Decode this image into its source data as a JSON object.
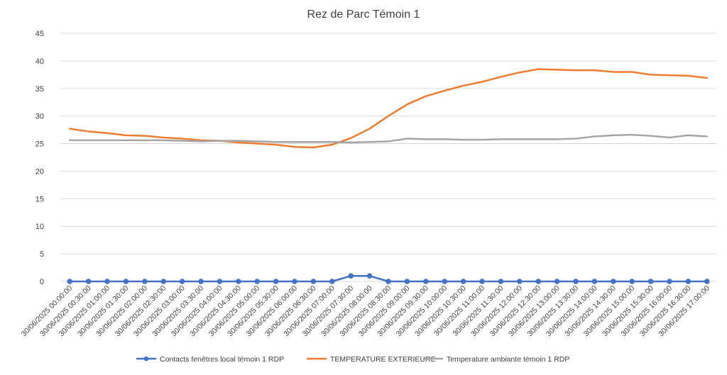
{
  "chart_data": {
    "type": "line",
    "title": "Rez de Parc Témoin 1",
    "xlabel": "",
    "ylabel": "",
    "ylim": [
      0,
      45
    ],
    "yticks": [
      0,
      5,
      10,
      15,
      20,
      25,
      30,
      35,
      40,
      45
    ],
    "grid": true,
    "legend_position": "bottom",
    "categories": [
      "30/06/2025 00:00:00",
      "30/06/2025 00:30:00",
      "30/06/2025 01:00:00",
      "30/06/2025 01:30:00",
      "30/06/2025 02:00:00",
      "30/06/2025 02:30:00",
      "30/06/2025 03:00:00",
      "30/06/2025 03:30:00",
      "30/06/2025 04:00:00",
      "30/06/2025 04:30:00",
      "30/06/2025 05:00:00",
      "30/06/2025 05:30:00",
      "30/06/2025 06:00:00",
      "30/06/2025 06:30:00",
      "30/06/2025 07:00:00",
      "30/06/2025 07:30:00",
      "30/06/2025 08:00:00",
      "30/06/2025 08:30:00",
      "30/06/2025 09:00:00",
      "30/06/2025 09:30:00",
      "30/06/2025 10:00:00",
      "30/06/2025 10:30:00",
      "30/06/2025 11:00:00",
      "30/06/2025 11:30:00",
      "30/06/2025 12:00:00",
      "30/06/2025 12:30:00",
      "30/06/2025 13:00:00",
      "30/06/2025 13:30:00",
      "30/06/2025 14:00:00",
      "30/06/2025 14:30:00",
      "30/06/2025 15:00:00",
      "30/06/2025 15:30:00",
      "30/06/2025 16:00:00",
      "30/06/2025 16:30:00",
      "30/06/2025 17:00:00"
    ],
    "series": [
      {
        "name": "Contacts fenêtres local témoin 1 RDP",
        "color": "#4472c4",
        "markers": true,
        "values": [
          0,
          0,
          0,
          0,
          0,
          0,
          0,
          0,
          0,
          0,
          0,
          0,
          0,
          0,
          0,
          1,
          1,
          0,
          0,
          0,
          0,
          0,
          0,
          0,
          0,
          0,
          0,
          0,
          0,
          0,
          0,
          0,
          0,
          0,
          0
        ]
      },
      {
        "name": "TEMPERATURE EXTERIEURE",
        "color": "#ed7d31",
        "markers": false,
        "values": [
          27.7,
          27.2,
          26.9,
          26.5,
          26.4,
          26.1,
          25.9,
          25.6,
          25.5,
          25.2,
          25.0,
          24.8,
          24.4,
          24.3,
          24.8,
          26.0,
          27.7,
          30.0,
          32.1,
          33.6,
          34.6,
          35.5,
          36.2,
          37.1,
          37.9,
          38.5,
          38.4,
          38.3,
          38.3,
          38.0,
          38.0,
          37.5,
          37.4,
          37.3,
          36.9
        ]
      },
      {
        "name": "Temperature ambiante témoin 1 RDP",
        "color": "#a5a5a5",
        "markers": false,
        "values": [
          25.6,
          25.6,
          25.6,
          25.6,
          25.6,
          25.6,
          25.5,
          25.4,
          25.5,
          25.5,
          25.4,
          25.3,
          25.3,
          25.3,
          25.3,
          25.2,
          25.3,
          25.4,
          25.9,
          25.8,
          25.8,
          25.7,
          25.7,
          25.8,
          25.8,
          25.8,
          25.8,
          25.9,
          26.3,
          26.5,
          26.6,
          26.4,
          26.1,
          26.5,
          26.3
        ]
      }
    ]
  }
}
